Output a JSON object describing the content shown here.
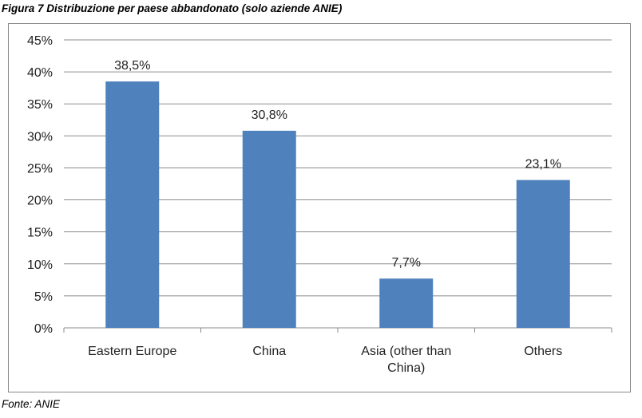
{
  "caption": "Figura 7 Distribuzione per paese abbandonato  (solo aziende ANIE)",
  "source": "Fonte: ANIE",
  "colors": {
    "bar": "#4f81bd",
    "grid": "#8c8c8c",
    "axis": "#8c8c8c"
  },
  "chart_data": {
    "type": "bar",
    "title": "",
    "xlabel": "",
    "ylabel": "",
    "categories": [
      [
        "Eastern Europe"
      ],
      [
        "China"
      ],
      [
        "Asia (other than",
        "China)"
      ],
      [
        "Others"
      ]
    ],
    "values": [
      38.5,
      30.8,
      7.7,
      23.1
    ],
    "data_labels": [
      "38,5%",
      "30,8%",
      "7,7%",
      "23,1%"
    ],
    "ylim": [
      0,
      45
    ],
    "yticks": [
      0,
      5,
      10,
      15,
      20,
      25,
      30,
      35,
      40,
      45
    ],
    "ytick_labels": [
      "0%",
      "5%",
      "10%",
      "15%",
      "20%",
      "25%",
      "30%",
      "35%",
      "40%",
      "45%"
    ],
    "grid": true,
    "legend": "none"
  }
}
